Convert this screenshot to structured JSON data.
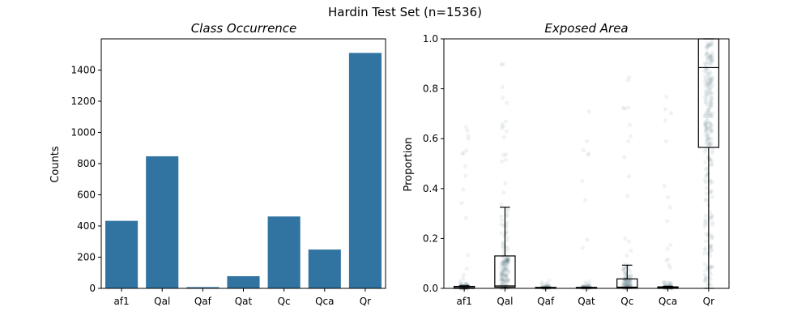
{
  "figure": {
    "suptitle": "Hardin Test Set (n=1536)"
  },
  "colors": {
    "bar": "#3274a1",
    "strip": "#2f4f63",
    "box_edge": "#000000"
  },
  "chart_data": [
    {
      "type": "bar",
      "title": "Class Occurrence",
      "xlabel": "",
      "ylabel": "Counts",
      "categories": [
        "af1",
        "Qal",
        "Qaf",
        "Qat",
        "Qc",
        "Qca",
        "Qr"
      ],
      "values": [
        433,
        847,
        8,
        78,
        461,
        249,
        1510
      ],
      "ylim": [
        0,
        1600
      ],
      "yticks": [
        0,
        200,
        400,
        600,
        800,
        1000,
        1200,
        1400
      ],
      "ytick_labels": [
        "0",
        "200",
        "400",
        "600",
        "800",
        "1000",
        "1200",
        "1400"
      ],
      "grid": false
    },
    {
      "type": "box",
      "title": "Exposed Area",
      "xlabel": "",
      "ylabel": "Proportion",
      "categories": [
        "af1",
        "Qal",
        "Qaf",
        "Qat",
        "Qc",
        "Qca",
        "Qr"
      ],
      "ylim": [
        0,
        1
      ],
      "yticks": [
        0,
        0.2,
        0.4,
        0.6,
        0.8,
        1.0
      ],
      "ytick_labels": [
        "0.0",
        "0.2",
        "0.4",
        "0.6",
        "0.8",
        "1.0"
      ],
      "boxes": [
        {
          "category": "af1",
          "whisker_low": 0,
          "q1": 0,
          "median": 0.003,
          "q3": 0.008,
          "whisker_high": 0.01
        },
        {
          "category": "Qal",
          "whisker_low": 0,
          "q1": 0.005,
          "median": 0.01,
          "q3": 0.13,
          "whisker_high": 0.325
        },
        {
          "category": "Qaf",
          "whisker_low": 0,
          "q1": 0,
          "median": 0.002,
          "q3": 0.004,
          "whisker_high": 0.005
        },
        {
          "category": "Qat",
          "whisker_low": 0,
          "q1": 0,
          "median": 0.002,
          "q3": 0.004,
          "whisker_high": 0.005
        },
        {
          "category": "Qc",
          "whisker_low": 0,
          "q1": 0.002,
          "median": 0.005,
          "q3": 0.038,
          "whisker_high": 0.093
        },
        {
          "category": "Qca",
          "whisker_low": 0,
          "q1": 0,
          "median": 0.003,
          "q3": 0.006,
          "whisker_high": 0.008
        },
        {
          "category": "Qr",
          "whisker_low": 0,
          "q1": 0.565,
          "median": 0.885,
          "q3": 1.0,
          "whisker_high": 1.0
        }
      ],
      "points_max": [
        0.71,
        0.94,
        0.04,
        0.8,
        0.99,
        0.83,
        1.0
      ],
      "grid": false
    }
  ]
}
